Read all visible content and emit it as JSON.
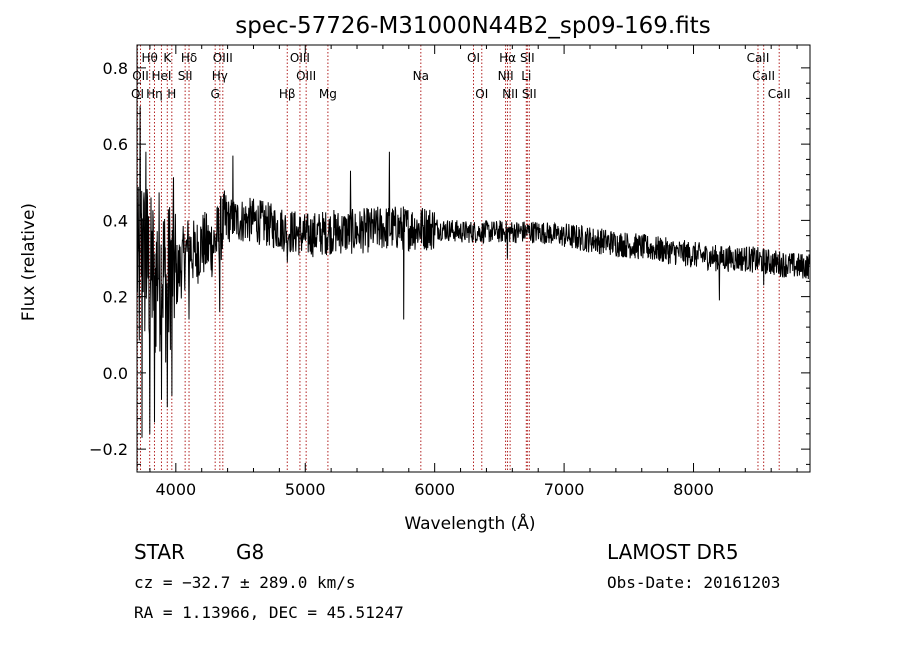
{
  "chart_data": {
    "type": "line",
    "title": "spec-57726-M31000N44B2_sp09-169.fits",
    "xlabel": "Wavelength (Å)",
    "ylabel": "Flux (relative)",
    "xlim": [
      3700,
      8900
    ],
    "ylim": [
      -0.26,
      0.86
    ],
    "x_ticks": [
      4000,
      5000,
      6000,
      7000,
      8000
    ],
    "x_tick_labels": [
      "4000",
      "5000",
      "6000",
      "7000",
      "8000"
    ],
    "y_ticks": [
      -0.2,
      0.0,
      0.2,
      0.4,
      0.6,
      0.8
    ],
    "y_tick_labels": [
      "−0.2",
      "0.0",
      "0.2",
      "0.4",
      "0.6",
      "0.8"
    ],
    "grid": false,
    "legend": "none",
    "line_color": "#000000",
    "marker_color": "#b22222",
    "spectrum_anchors": [
      [
        3700,
        0.31
      ],
      [
        3720,
        0.22
      ],
      [
        3740,
        0.38
      ],
      [
        3760,
        0.28
      ],
      [
        3780,
        0.3
      ],
      [
        3800,
        0.24
      ],
      [
        3820,
        0.27
      ],
      [
        3840,
        0.22
      ],
      [
        3860,
        0.3
      ],
      [
        3880,
        0.26
      ],
      [
        3900,
        0.27
      ],
      [
        3920,
        0.24
      ],
      [
        3940,
        0.22
      ],
      [
        3960,
        0.28
      ],
      [
        3980,
        0.3
      ],
      [
        4000,
        0.25
      ],
      [
        4050,
        0.29
      ],
      [
        4100,
        0.33
      ],
      [
        4150,
        0.31
      ],
      [
        4200,
        0.34
      ],
      [
        4250,
        0.33
      ],
      [
        4300,
        0.34
      ],
      [
        4350,
        0.38
      ],
      [
        4400,
        0.4
      ],
      [
        4500,
        0.4
      ],
      [
        4600,
        0.4
      ],
      [
        4700,
        0.39
      ],
      [
        4800,
        0.38
      ],
      [
        4900,
        0.37
      ],
      [
        5000,
        0.36
      ],
      [
        5200,
        0.37
      ],
      [
        5400,
        0.37
      ],
      [
        5600,
        0.38
      ],
      [
        5800,
        0.38
      ],
      [
        6000,
        0.38
      ],
      [
        6200,
        0.37
      ],
      [
        6400,
        0.37
      ],
      [
        6600,
        0.37
      ],
      [
        6800,
        0.37
      ],
      [
        7000,
        0.36
      ],
      [
        7200,
        0.35
      ],
      [
        7400,
        0.34
      ],
      [
        7600,
        0.33
      ],
      [
        7800,
        0.32
      ],
      [
        8000,
        0.31
      ],
      [
        8200,
        0.3
      ],
      [
        8400,
        0.3
      ],
      [
        8600,
        0.29
      ],
      [
        8800,
        0.28
      ],
      [
        8900,
        0.28
      ]
    ],
    "spectrum_features": [
      {
        "x": 3725,
        "y": 0.7
      },
      {
        "x": 3740,
        "y": -0.17
      },
      {
        "x": 3770,
        "y": 0.58
      },
      {
        "x": 3800,
        "y": -0.16
      },
      {
        "x": 3835,
        "y": -0.13
      },
      {
        "x": 3890,
        "y": -0.07
      },
      {
        "x": 3934,
        "y": -0.09
      },
      {
        "x": 3969,
        "y": -0.06
      },
      {
        "x": 4102,
        "y": 0.14
      },
      {
        "x": 4340,
        "y": 0.16
      },
      {
        "x": 4440,
        "y": 0.57
      },
      {
        "x": 4861,
        "y": 0.29
      },
      {
        "x": 5350,
        "y": 0.53
      },
      {
        "x": 5650,
        "y": 0.58
      },
      {
        "x": 5760,
        "y": 0.14
      },
      {
        "x": 6563,
        "y": 0.3
      },
      {
        "x": 8200,
        "y": 0.19
      },
      {
        "x": 8542,
        "y": 0.23
      }
    ],
    "lines_top": [
      {
        "label": "Hθ",
        "x": 3798,
        "row": 0
      },
      {
        "label": "K",
        "x": 3934,
        "row": 0
      },
      {
        "label": "Hδ",
        "x": 4102,
        "row": 0
      },
      {
        "label": "OIII",
        "x": 4363,
        "row": 0
      },
      {
        "label": "OIII",
        "x": 4959,
        "row": 0
      },
      {
        "label": "OI",
        "x": 6300,
        "row": 0
      },
      {
        "label": "Hα",
        "x": 6563,
        "row": 0
      },
      {
        "label": "SII",
        "x": 6716,
        "row": 0
      },
      {
        "label": "CaII",
        "x": 8498,
        "row": 0
      },
      {
        "label": "OII",
        "x": 3727,
        "row": 1
      },
      {
        "label": "HeI",
        "x": 3889,
        "row": 1
      },
      {
        "label": "SII",
        "x": 4072,
        "row": 1
      },
      {
        "label": "Hγ",
        "x": 4340,
        "row": 1
      },
      {
        "label": "OIII",
        "x": 5007,
        "row": 1
      },
      {
        "label": "Na",
        "x": 5893,
        "row": 1
      },
      {
        "label": "NII",
        "x": 6548,
        "row": 1
      },
      {
        "label": "Li",
        "x": 6708,
        "row": 1
      },
      {
        "label": "CaII",
        "x": 8542,
        "row": 1
      },
      {
        "label": "OI",
        "x": 3704,
        "row": 2
      },
      {
        "label": "Hη",
        "x": 3835,
        "row": 2
      },
      {
        "label": "H",
        "x": 3969,
        "row": 2
      },
      {
        "label": "G",
        "x": 4304,
        "row": 2
      },
      {
        "label": "Hβ",
        "x": 4861,
        "row": 2
      },
      {
        "label": "Mg",
        "x": 5175,
        "row": 2
      },
      {
        "label": "OI",
        "x": 6364,
        "row": 2
      },
      {
        "label": "NII",
        "x": 6583,
        "row": 2
      },
      {
        "label": "SII",
        "x": 6731,
        "row": 2
      },
      {
        "label": "CaII",
        "x": 8662,
        "row": 2
      }
    ]
  },
  "info": {
    "object_class": "STAR",
    "subclass": "G8",
    "survey": "LAMOST DR5",
    "cz_line": "cz = −32.7 ± 289.0 km/s",
    "obs_date": "Obs-Date: 20161203",
    "coords_line": "RA =   1.13966, DEC =  45.51247"
  }
}
